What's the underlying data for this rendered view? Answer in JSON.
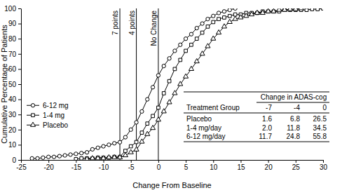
{
  "chart_data": {
    "type": "line",
    "x_label": "Change From Baseline",
    "y_label": "Cumulative Percentage of Patients",
    "x": [
      -24,
      -23,
      -22,
      -21,
      -20,
      -19,
      -18,
      -17,
      -16,
      -15,
      -14,
      -13,
      -12,
      -11,
      -10,
      -9,
      -8,
      -7,
      -6,
      -5,
      -4,
      -3,
      -2,
      -1,
      0,
      1,
      2,
      3,
      4,
      5,
      6,
      7,
      8,
      9,
      10,
      11,
      12,
      13,
      14,
      15,
      16,
      17,
      18,
      19,
      20,
      21,
      22,
      23,
      24,
      25,
      26,
      27,
      28,
      29,
      30
    ],
    "series": [
      {
        "name": "6-12 mg",
        "color": "#000000",
        "marker": "circle",
        "values": [
          null,
          1,
          1,
          1.5,
          2,
          2,
          2.5,
          3,
          3.5,
          4,
          4.5,
          5,
          7,
          8,
          9,
          10,
          11,
          11.7,
          15,
          20,
          24.8,
          32,
          40,
          48,
          55.8,
          62,
          67,
          72,
          76,
          80,
          83,
          87,
          90,
          93,
          95,
          97,
          98,
          99,
          100,
          null,
          null,
          null,
          null,
          null,
          null,
          null,
          null,
          null,
          null,
          null,
          null,
          null,
          null,
          null,
          null
        ]
      },
      {
        "name": "1-4 mg",
        "color": "#000000",
        "marker": "square",
        "values": [
          null,
          null,
          null,
          null,
          null,
          null,
          null,
          null,
          null,
          0.5,
          1,
          1,
          1,
          1.5,
          1.5,
          1.5,
          2,
          2,
          6,
          9,
          11.8,
          18,
          24,
          29,
          34.5,
          44,
          52,
          60,
          66,
          72,
          76,
          80,
          84,
          88,
          91,
          93,
          94,
          95,
          96,
          96,
          97,
          97,
          97,
          98,
          98,
          98,
          98,
          99,
          99,
          99,
          99,
          99,
          99.5,
          99.5,
          100
        ]
      },
      {
        "name": "Placebo",
        "color": "#000000",
        "marker": "triangle",
        "values": [
          null,
          null,
          null,
          null,
          null,
          null,
          null,
          null,
          null,
          null,
          null,
          0.5,
          1,
          1,
          1,
          1.6,
          1.6,
          1.6,
          3,
          5,
          6.8,
          12,
          17,
          21,
          26.5,
          32,
          38,
          44,
          50,
          55,
          60,
          65,
          70,
          75,
          80,
          84,
          88,
          91,
          93,
          94,
          95,
          96,
          97,
          97,
          98,
          98,
          99,
          99,
          99.5,
          99.5,
          100,
          null,
          null,
          null,
          null
        ]
      }
    ],
    "xlim": [
      -25,
      30
    ],
    "xticks": [
      -25,
      -20,
      -15,
      -10,
      -5,
      0,
      5,
      10,
      15,
      20,
      25,
      30
    ],
    "ylim": [
      0,
      100
    ],
    "yticks": [
      0,
      10,
      20,
      30,
      40,
      50,
      60,
      70,
      80,
      90,
      100
    ],
    "grid": false,
    "legend": "center left",
    "annotations": [
      {
        "x": -7,
        "text": "7 points"
      },
      {
        "x": -4,
        "text": "4 points"
      },
      {
        "x": 0,
        "text": "No Change"
      }
    ],
    "table": {
      "title": "Change in ADAS-cog",
      "columns": [
        "Treatment Group",
        -7,
        -4,
        0
      ],
      "rows": [
        {
          "name": "Placebo",
          "values": [
            1.6,
            6.8,
            26.5
          ]
        },
        {
          "name": "1-4 mg/day",
          "values": [
            2.0,
            11.8,
            34.5
          ]
        },
        {
          "name": "6-12 mg/day",
          "values": [
            11.7,
            24.8,
            55.8
          ]
        }
      ]
    }
  }
}
